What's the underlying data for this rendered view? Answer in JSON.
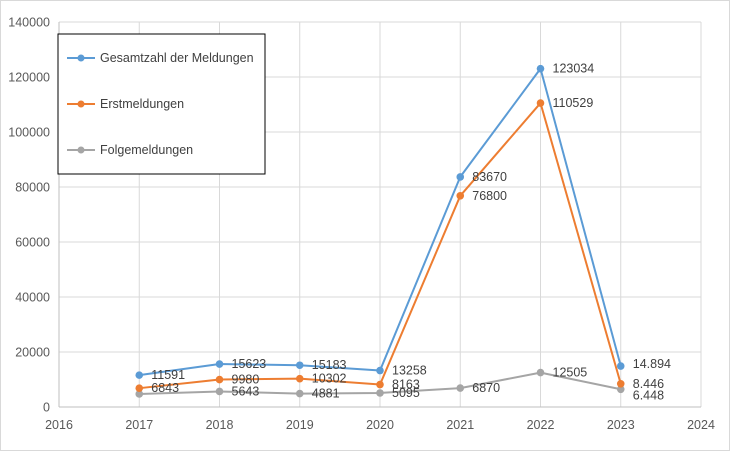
{
  "chart_data": {
    "type": "line",
    "title": "",
    "xlabel": "",
    "ylabel": "",
    "xlim": [
      2016,
      2024
    ],
    "ylim": [
      0,
      140000
    ],
    "x_ticks": [
      "2016",
      "2017",
      "2018",
      "2019",
      "2020",
      "2021",
      "2022",
      "2023",
      "2024"
    ],
    "y_ticks": [
      "0",
      "20000",
      "40000",
      "60000",
      "80000",
      "100000",
      "120000",
      "140000"
    ],
    "grid": "vertical and horizontal",
    "legend_position": "top-left",
    "x": [
      2017,
      2018,
      2019,
      2020,
      2021,
      2022,
      2023
    ],
    "series": [
      {
        "name": "Gesamtzahl der Meldungen",
        "color": "#5b9bd5",
        "values": [
          11591,
          15623,
          15183,
          13258,
          83670,
          123034,
          14894
        ],
        "labels": [
          "11591",
          "15623",
          "15183",
          "13258",
          "83670",
          "123034",
          "14.894"
        ]
      },
      {
        "name": "Erstmeldungen",
        "color": "#ed7d31",
        "values": [
          6843,
          9980,
          10302,
          8163,
          76800,
          110529,
          8446
        ],
        "labels": [
          "6843",
          "9980",
          "10302",
          "8163",
          "76800",
          "110529",
          "8.446"
        ]
      },
      {
        "name": "Folgemeldungen",
        "color": "#a5a5a5",
        "values": [
          4748,
          5643,
          4881,
          5095,
          6870,
          12505,
          6448
        ],
        "labels": [
          "",
          "5643",
          "4881",
          "5095",
          "6870",
          "12505",
          "6.448"
        ]
      }
    ]
  }
}
